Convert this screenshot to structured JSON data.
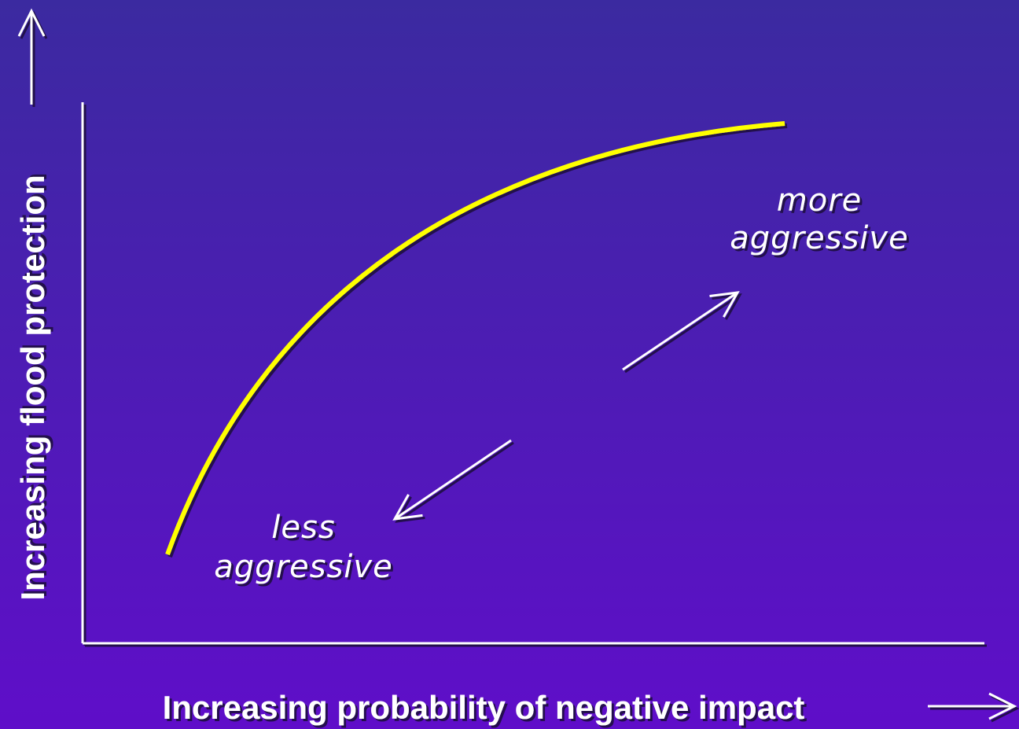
{
  "y_axis_label": "Increasing flood protection",
  "x_axis_label": "Increasing probability of negative impact",
  "annotations": [
    {
      "lines": [
        "more",
        "aggressive"
      ]
    },
    {
      "lines": [
        "less",
        "aggressive"
      ]
    }
  ]
}
